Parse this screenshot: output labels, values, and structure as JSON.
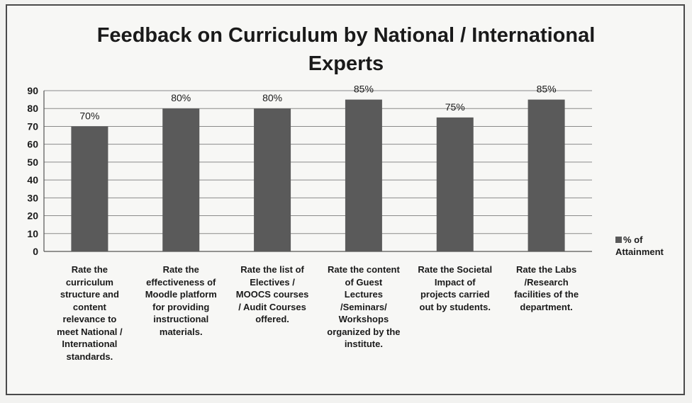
{
  "chart_data": {
    "type": "bar",
    "title": [
      "Feedback on Curriculum by National / International",
      "Experts"
    ],
    "categories": [
      "Rate the curriculum structure and content relevance to meet National / International standards.",
      "Rate the effectiveness of Moodle platform for providing instructional materials.",
      "Rate the list of Electives / MOOCS courses / Audit Courses offered.",
      "Rate the content of Guest Lectures /Seminars/ Workshops organized by the institute.",
      "Rate the Societal Impact of projects carried out by students.",
      "Rate the Labs /Research facilities of the department."
    ],
    "category_lines": [
      [
        "Rate the",
        "curriculum",
        "structure and",
        "content",
        "relevance to",
        "meet National /",
        "International",
        "standards."
      ],
      [
        "Rate the",
        "effectiveness of",
        "Moodle platform",
        "for providing",
        "instructional",
        "materials."
      ],
      [
        "Rate the list of",
        "Electives /",
        "MOOCS courses",
        "/ Audit Courses",
        "offered."
      ],
      [
        "Rate the content",
        "of Guest",
        "Lectures",
        "/Seminars/",
        "Workshops",
        "organized by the",
        "institute."
      ],
      [
        "Rate the Societal",
        "Impact of",
        "projects carried",
        "out by students."
      ],
      [
        "Rate the Labs",
        "/Research",
        "facilities of the",
        "department."
      ]
    ],
    "series": [
      {
        "name": "% of Attainment",
        "values": [
          70,
          80,
          80,
          85,
          75,
          85
        ]
      }
    ],
    "data_labels": [
      "70%",
      "80%",
      "80%",
      "85%",
      "75%",
      "85%"
    ],
    "ylim": [
      0,
      90
    ],
    "yticks": [
      0,
      10,
      20,
      30,
      40,
      50,
      60,
      70,
      80,
      90
    ],
    "grid": true,
    "legend": "right",
    "colors": {
      "bar": "#5a5a5a",
      "grid": "#8a8a8a",
      "axis": "#555555"
    }
  }
}
